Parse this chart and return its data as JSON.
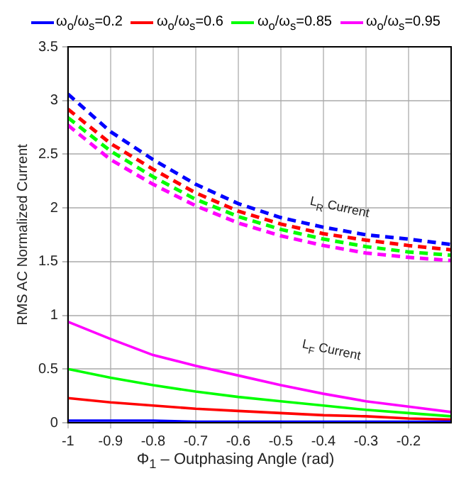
{
  "chart_data": {
    "type": "line",
    "xlabel": "Φ$_{1}$ – Outphasing Angle (rad)",
    "ylabel": "RMS AC Normalized Current",
    "x": [
      -1,
      -0.9,
      -0.8,
      -0.7,
      -0.6,
      -0.5,
      -0.4,
      -0.3,
      -0.2,
      -0.1
    ],
    "xlim": [
      -1,
      -0.1
    ],
    "xticks": [
      -1,
      -0.9,
      -0.8,
      -0.7,
      -0.6,
      -0.5,
      -0.4,
      -0.3,
      -0.2
    ],
    "ylim": [
      0,
      3.5
    ],
    "yticks": [
      0,
      0.5,
      1,
      1.5,
      2,
      2.5,
      3,
      3.5
    ],
    "grid": true,
    "legend": "top",
    "marker": "none",
    "series": [
      {
        "name": "ω$_{o}$/ω$_{s}$=0.2",
        "color": "#0000ff",
        "line_style": "solid",
        "values": [
          0.02,
          0.02,
          0.02,
          0.01,
          0.01,
          0.01,
          0.01,
          0.01,
          0.01,
          0.01
        ]
      },
      {
        "name": "ω$_{o}$/ω$_{s}$=0.6",
        "color": "#ff0000",
        "line_style": "solid",
        "values": [
          0.23,
          0.19,
          0.16,
          0.13,
          0.11,
          0.09,
          0.07,
          0.06,
          0.04,
          0.03
        ]
      },
      {
        "name": "ω$_{o}$/ω$_{s}$=0.85",
        "color": "#00ff00",
        "line_style": "solid",
        "values": [
          0.5,
          0.42,
          0.35,
          0.29,
          0.24,
          0.2,
          0.16,
          0.12,
          0.09,
          0.06
        ]
      },
      {
        "name": "ω$_{o}$/ω$_{s}$=0.95",
        "color": "#ff00ff",
        "line_style": "solid",
        "values": [
          0.94,
          0.78,
          0.63,
          0.53,
          0.44,
          0.35,
          0.27,
          0.2,
          0.15,
          0.1
        ]
      },
      {
        "color": "#0000ff",
        "line_style": "dashed",
        "values": [
          3.06,
          2.71,
          2.45,
          2.22,
          2.04,
          1.91,
          1.82,
          1.75,
          1.71,
          1.66
        ]
      },
      {
        "color": "#ff0000",
        "line_style": "dashed",
        "values": [
          2.92,
          2.6,
          2.36,
          2.14,
          1.97,
          1.85,
          1.76,
          1.7,
          1.65,
          1.61
        ]
      },
      {
        "color": "#00ff00",
        "line_style": "dashed",
        "values": [
          2.84,
          2.53,
          2.29,
          2.08,
          1.92,
          1.8,
          1.71,
          1.64,
          1.59,
          1.56
        ]
      },
      {
        "color": "#ff00ff",
        "line_style": "dashed",
        "values": [
          2.77,
          2.45,
          2.22,
          2.02,
          1.86,
          1.74,
          1.65,
          1.58,
          1.54,
          1.51
        ]
      }
    ],
    "annotations": [
      "L$_{R}$ Current",
      "L$_{F}$ Current"
    ]
  }
}
